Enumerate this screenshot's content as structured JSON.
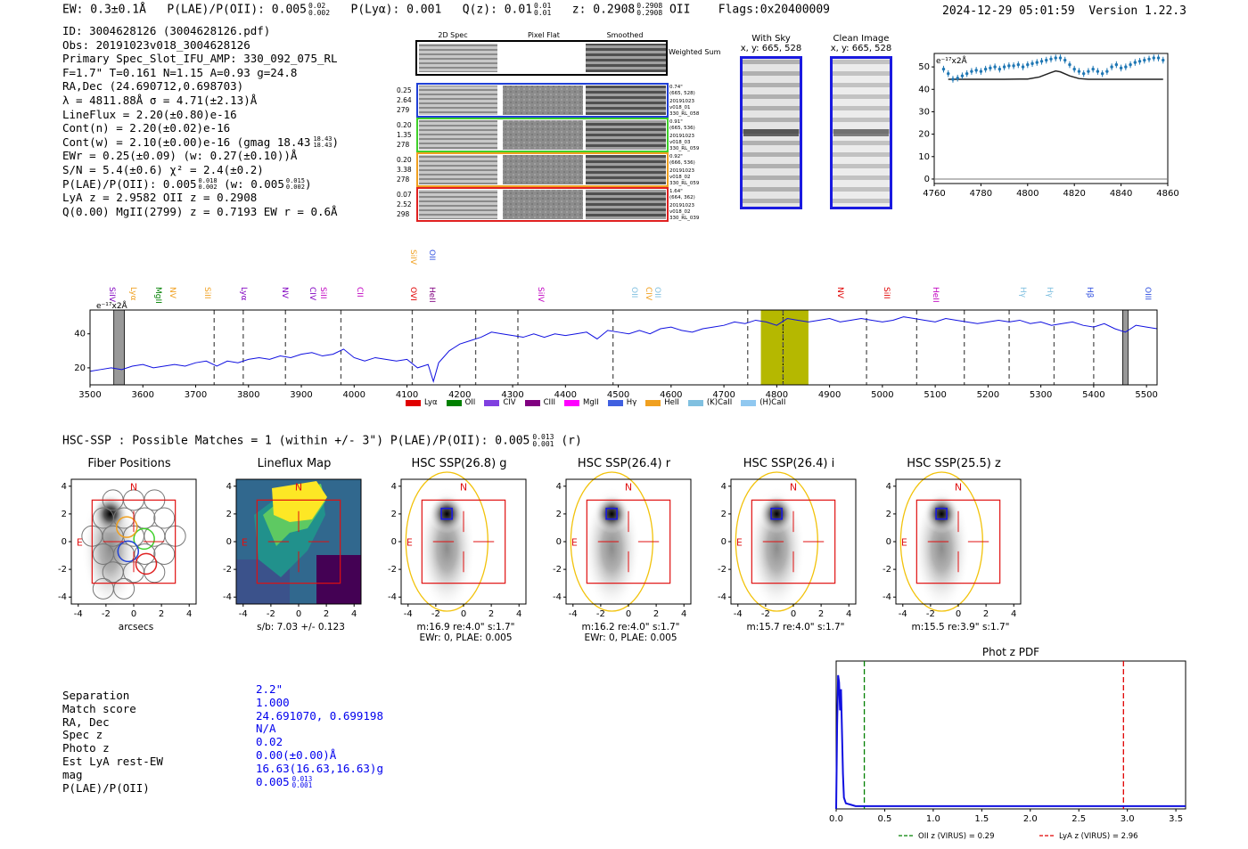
{
  "header": {
    "ew": "EW: 0.3±0.1Å",
    "plae": "P(LAE)/P(OII): 0.005",
    "plae_sup": "0.02",
    "plae_sub": "0.002",
    "plya": "P(Lyα): 0.001",
    "qz": "Q(z): 0.01",
    "qz_sup": "0.01",
    "qz_sub": "0.01",
    "z": "z: 0.2908",
    "z_sup": "0.2908",
    "z_sub": "0.2908",
    "z_line": "OII",
    "flags": "Flags:0x20400009",
    "timestamp": "2024-12-29 05:01:59",
    "version": "Version 1.22.3"
  },
  "info": {
    "id": "ID: 3004628126 (3004628126.pdf)",
    "obs": "Obs: 20191023v018_3004628126",
    "primary": "Primary Spec_Slot_IFU_AMP: 330_092_075_RL",
    "fwhm": "F=1.7\"  T=0.161  N=1.15  A=0.93  g=24.8",
    "radec": "RA,Dec (24.690712,0.698703)",
    "lambda": "λ = 4811.88Å  σ = 4.71(±2.13)Å",
    "lineflux": "LineFlux = 2.20(±0.80)e-16",
    "contn": "Cont(n) = 2.20(±0.02)e-16",
    "contw": "Cont(w) = 2.10(±0.00)e-16 (gmag 18.43",
    "contw_sup": "18.43",
    "contw_sub": "18.43",
    "ewr": "EWr = 0.25(±0.09) (w: 0.27(±0.10))Å",
    "sn": "S/N = 5.4(±0.6)  χ² = 2.4(±0.2)",
    "plae": "P(LAE)/P(OII): 0.005",
    "plae_sup": "0.018",
    "plae_sub": "0.002",
    "plae_w": "(w: 0.005",
    "plae_w_sup": "0.015",
    "plae_w_sub": "0.002",
    "lya": "LyA z = 2.9582  OII z = 0.2908",
    "q": "Q(0.00) MgII(2799) z = 0.7193  EW r = 0.6Å"
  },
  "cutouts": {
    "col_2d": "2D Spec",
    "col_flat": "Pixel Flat",
    "col_smooth": "Smoothed",
    "weighted": "Weighted Sum",
    "rows": [
      {
        "w": "0.25",
        "n": "2.64",
        "c": "279",
        "sep": "0.74\"",
        "xy": "(665, 528)",
        "d": "20191023",
        "v": "v018_01",
        "amp": "330_RL_058",
        "color": "#1f3fd6"
      },
      {
        "w": "0.20",
        "n": "1.35",
        "c": "278",
        "sep": "0.91\"",
        "xy": "(665, 536)",
        "d": "20191023",
        "v": "v018_03",
        "amp": "330_RL_059",
        "color": "#3fd02a"
      },
      {
        "w": "0.20",
        "n": "3.38",
        "c": "278",
        "sep": "0.92\"",
        "xy": "(666, 536)",
        "d": "20191023",
        "v": "v018_02",
        "amp": "330_RL_059",
        "color": "#f0a020"
      },
      {
        "w": "0.07",
        "n": "2.52",
        "c": "298",
        "sep": "1.64\"",
        "xy": "(664, 362)",
        "d": "20191023",
        "v": "v018_02",
        "amp": "330_RL_039",
        "color": "#e02020"
      }
    ]
  },
  "with_sky": {
    "title": "With Sky",
    "xy": "x, y: 665, 528"
  },
  "clean": {
    "title": "Clean Image",
    "xy": "x, y: 665, 528"
  },
  "zoom_label": "e⁻¹⁷x2Å",
  "line_labels": [
    {
      "name": "SiIV",
      "c": "#8000c0"
    },
    {
      "name": "Lyα",
      "c": "#f0a020"
    },
    {
      "name": "MgII",
      "c": "#008000"
    },
    {
      "name": "NV",
      "c": "#f0a020"
    },
    {
      "name": "SiII",
      "c": "#f0a020"
    },
    {
      "name": "Lyα",
      "c": "#8000c0"
    },
    {
      "name": "NV",
      "c": "#8000c0"
    },
    {
      "name": "CIV",
      "c": "#8000c0"
    },
    {
      "name": "SiII",
      "c": "#c000c0"
    },
    {
      "name": "CII",
      "c": "#c000c0"
    },
    {
      "name": "OVI",
      "c": "#e00000"
    },
    {
      "name": "HeII",
      "c": "#800080"
    },
    {
      "name": "SiIV",
      "c": "#f0a020"
    },
    {
      "name": "OII",
      "c": "#3050e0"
    },
    {
      "name": "SiIV",
      "c": "#c000c0"
    },
    {
      "name": "OII",
      "c": "#80c0e0"
    },
    {
      "name": "CIV",
      "c": "#f0a020"
    },
    {
      "name": "OII",
      "c": "#80c0e0"
    },
    {
      "name": "NV",
      "c": "#e00000"
    },
    {
      "name": "SiII",
      "c": "#e00000"
    },
    {
      "name": "HeII",
      "c": "#c000c0"
    },
    {
      "name": "Hγ",
      "c": "#80c0e0"
    },
    {
      "name": "Hγ",
      "c": "#80c0e0"
    },
    {
      "name": "Hβ",
      "c": "#3050e0"
    },
    {
      "name": "OIII",
      "c": "#3050e0"
    }
  ],
  "legend": [
    {
      "name": "Lyα",
      "c": "#e00000"
    },
    {
      "name": "OII",
      "c": "#008000"
    },
    {
      "name": "CIV",
      "c": "#8040e0"
    },
    {
      "name": "CIII",
      "c": "#800080"
    },
    {
      "name": "MgII",
      "c": "#ff00ff"
    },
    {
      "name": "Hγ",
      "c": "#4060e0"
    },
    {
      "name": "HeII",
      "c": "#f0a020"
    },
    {
      "name": "(K)CaII",
      "c": "#80c0e0"
    },
    {
      "name": "(H)CaII",
      "c": "#90c8f0"
    }
  ],
  "hsc": {
    "heading": "HSC-SSP : Possible Matches = 1 (within +/- 3\")  P(LAE)/P(OII): 0.005",
    "heading_sup": "0.013",
    "heading_sub": "0.001",
    "heading_tail": "(r)",
    "panels": [
      {
        "title": "Fiber Positions",
        "xlabel": "arcsecs",
        "xlabel2": ""
      },
      {
        "title": "Lineflux Map",
        "xlabel": "s/b: 7.03 +/- 0.123",
        "xlabel2": ""
      },
      {
        "title": "HSC SSP(26.8) g",
        "xlabel": "m:16.9  re:4.0\"  s:1.7\"",
        "xlabel2": "EWr: 0, PLAE: 0.005"
      },
      {
        "title": "HSC SSP(26.4) r",
        "xlabel": "m:16.2  re:4.0\"  s:1.7\"",
        "xlabel2": "EWr: 0, PLAE: 0.005"
      },
      {
        "title": "HSC SSP(26.4) i",
        "xlabel": "m:15.7  re:4.0\"  s:1.7\"",
        "xlabel2": ""
      },
      {
        "title": "HSC SSP(25.5) z",
        "xlabel": "m:15.5  re:3.9\"  s:1.7\"",
        "xlabel2": ""
      }
    ],
    "n_label": "N",
    "e_label": "E"
  },
  "match": {
    "labels": [
      "Separation",
      "Match score",
      "RA, Dec",
      "Spec z",
      "Photo z",
      "Est LyA rest-EW",
      "mag",
      "P(LAE)/P(OII)"
    ],
    "values": [
      "2.2\"",
      "1.000",
      "24.691070, 0.699198",
      "N/A",
      "0.02",
      "0.00(±0.00)Å",
      "16.63(16.63,16.63)g",
      "0.005"
    ],
    "plae_sup": "0.013",
    "plae_sub": "0.001"
  },
  "chart_data": [
    {
      "type": "line",
      "title": "",
      "xlabel": "",
      "ylabel": "e⁻¹⁷x2Å",
      "xlim": [
        4760,
        4860
      ],
      "ylim": [
        -2,
        56
      ],
      "xticks": [
        4760,
        4780,
        4800,
        4820,
        4840,
        4860
      ],
      "yticks": [
        0,
        10,
        20,
        30,
        40,
        50
      ],
      "series": [
        {
          "name": "data",
          "x": [
            4764,
            4766,
            4768,
            4770,
            4772,
            4774,
            4776,
            4778,
            4780,
            4782,
            4784,
            4786,
            4788,
            4790,
            4792,
            4794,
            4796,
            4798,
            4800,
            4802,
            4804,
            4806,
            4808,
            4810,
            4812,
            4814,
            4816,
            4818,
            4820,
            4822,
            4824,
            4826,
            4828,
            4830,
            4832,
            4834,
            4836,
            4838,
            4840,
            4842,
            4844,
            4846,
            4848,
            4850,
            4852,
            4854,
            4856,
            4858
          ],
          "y": [
            49,
            47,
            44.5,
            45,
            46,
            47,
            48,
            48.5,
            48,
            49,
            49.5,
            50,
            49,
            50,
            50.5,
            50.5,
            51,
            50,
            51,
            51.5,
            52,
            52.5,
            53,
            53.5,
            54,
            54,
            53,
            51,
            49,
            48,
            47,
            48,
            49,
            48,
            47,
            48,
            50,
            51,
            49.5,
            50,
            51,
            52,
            52.5,
            53,
            53.5,
            54,
            54,
            53
          ]
        },
        {
          "name": "model",
          "x": [
            4766,
            4790,
            4800,
            4805,
            4810,
            4812,
            4814,
            4818,
            4822,
            4826,
            4858
          ],
          "y": [
            44.5,
            44.5,
            44.6,
            45.5,
            47.5,
            48.2,
            47.8,
            46,
            44.8,
            44.5,
            44.5
          ]
        }
      ]
    },
    {
      "type": "line",
      "title": "",
      "xlabel": "",
      "ylabel": "e⁻¹⁷x2Å",
      "xlim": [
        3500,
        5520
      ],
      "ylim": [
        10,
        54
      ],
      "xticks": [
        3500,
        3600,
        3700,
        3800,
        3900,
        4000,
        4100,
        4200,
        4300,
        4400,
        4500,
        4600,
        4700,
        4800,
        4900,
        5000,
        5100,
        5200,
        5300,
        5400,
        5500
      ],
      "yticks": [
        20,
        40
      ],
      "highlight": [
        4770,
        4860
      ],
      "center_line": 4811.88,
      "masked": [
        [
          3545,
          3565
        ],
        [
          5455,
          5465
        ]
      ],
      "dashed_lines": [
        3735,
        3790,
        3870,
        3975,
        4110,
        4230,
        4310,
        4490,
        4745,
        4812,
        4970,
        5065,
        5155,
        5240,
        5325,
        5400
      ],
      "series": [
        {
          "name": "spectrum",
          "x": [
            3500,
            3520,
            3540,
            3560,
            3580,
            3600,
            3620,
            3640,
            3660,
            3680,
            3700,
            3720,
            3740,
            3760,
            3780,
            3800,
            3820,
            3840,
            3860,
            3880,
            3900,
            3920,
            3940,
            3960,
            3980,
            4000,
            4020,
            4040,
            4060,
            4080,
            4100,
            4120,
            4140,
            4150,
            4160,
            4180,
            4200,
            4220,
            4240,
            4260,
            4280,
            4300,
            4320,
            4340,
            4360,
            4380,
            4400,
            4420,
            4440,
            4460,
            4480,
            4500,
            4520,
            4540,
            4560,
            4580,
            4600,
            4620,
            4640,
            4660,
            4680,
            4700,
            4720,
            4740,
            4760,
            4780,
            4800,
            4820,
            4840,
            4860,
            4880,
            4900,
            4920,
            4940,
            4960,
            4980,
            5000,
            5020,
            5040,
            5060,
            5080,
            5100,
            5120,
            5140,
            5160,
            5180,
            5200,
            5220,
            5240,
            5260,
            5280,
            5300,
            5320,
            5340,
            5360,
            5380,
            5400,
            5420,
            5440,
            5460,
            5480,
            5500,
            5520
          ],
          "y": [
            18,
            19,
            20,
            19,
            21,
            22,
            20,
            21,
            22,
            21,
            23,
            24,
            21,
            24,
            23,
            25,
            26,
            25,
            27,
            26,
            28,
            29,
            27,
            28,
            31,
            26,
            24,
            26,
            25,
            24,
            25,
            20,
            22,
            12,
            23,
            30,
            34,
            36,
            38,
            41,
            40,
            39,
            38,
            40,
            38,
            40,
            39,
            40,
            41,
            37,
            42,
            41,
            40,
            42,
            40,
            43,
            44,
            42,
            41,
            43,
            44,
            45,
            47,
            46,
            48,
            47,
            45,
            49,
            48,
            47,
            48,
            49,
            47,
            48,
            49,
            48,
            47,
            48,
            50,
            49,
            48,
            47,
            49,
            48,
            47,
            46,
            47,
            48,
            47,
            48,
            46,
            47,
            45,
            46,
            47,
            45,
            44,
            46,
            43,
            41,
            45,
            44,
            43
          ]
        }
      ]
    },
    {
      "type": "line",
      "title": "Phot z PDF",
      "xlabel": "",
      "ylabel": "",
      "xlim": [
        0,
        3.6
      ],
      "ylim": [
        0,
        1
      ],
      "xticks": [
        0.0,
        0.5,
        1.0,
        1.5,
        2.0,
        2.5,
        3.0,
        3.5
      ],
      "vlines": [
        {
          "x": 0.29,
          "label": "OII z (VIRUS) = 0.29",
          "color": "#008000"
        },
        {
          "x": 2.96,
          "label": "LyA z (VIRUS) = 2.96",
          "color": "#e00000"
        }
      ],
      "series": [
        {
          "name": "pdf",
          "x": [
            0.0,
            0.01,
            0.02,
            0.03,
            0.04,
            0.05,
            0.06,
            0.07,
            0.08,
            0.1,
            0.15,
            0.2,
            0.5,
            1.0,
            2.0,
            3.0,
            3.6
          ],
          "y": [
            0.0,
            0.6,
            0.95,
            0.9,
            0.7,
            0.85,
            0.55,
            0.25,
            0.08,
            0.04,
            0.03,
            0.02,
            0.02,
            0.02,
            0.02,
            0.02,
            0.02
          ]
        }
      ]
    }
  ]
}
